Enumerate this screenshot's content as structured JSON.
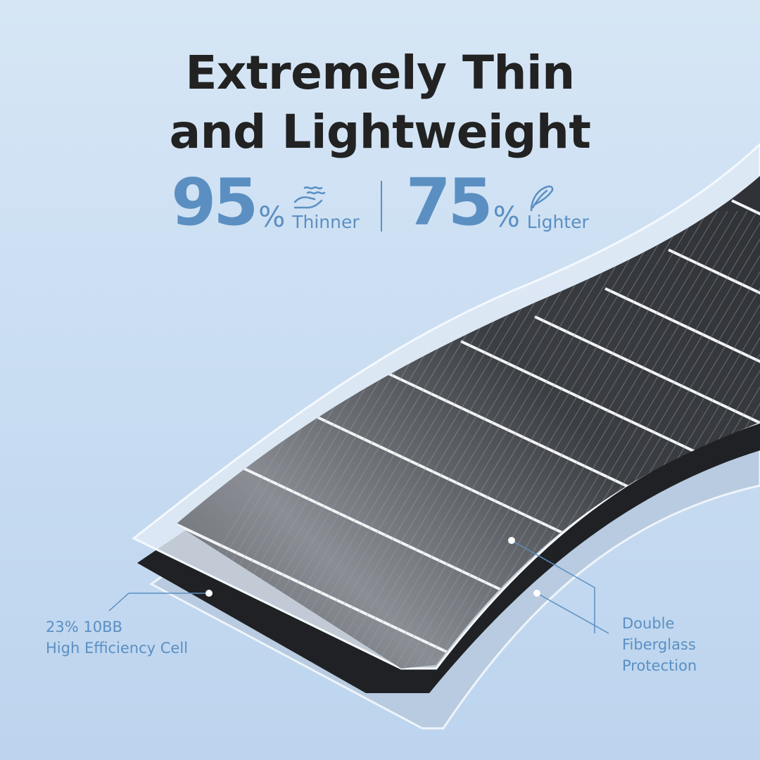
{
  "headline": {
    "line1": "Extremely Thin",
    "line2": "and Lightweight"
  },
  "stats": [
    {
      "value": "95",
      "unit": "%",
      "label": "Thinner",
      "icon": "hand-waves-icon"
    },
    {
      "value": "75",
      "unit": "%",
      "label": "Lighter",
      "icon": "feather-icon"
    }
  ],
  "callouts": {
    "cell": {
      "line1": "23% 10BB",
      "line2": "High Efficiency Cell"
    },
    "protection": {
      "line1": "Double",
      "line2": "Fiberglass",
      "line3": "Protection"
    }
  },
  "colors": {
    "accent": "#5b8fc2",
    "title": "#222222",
    "background": "#cfe1f3"
  }
}
